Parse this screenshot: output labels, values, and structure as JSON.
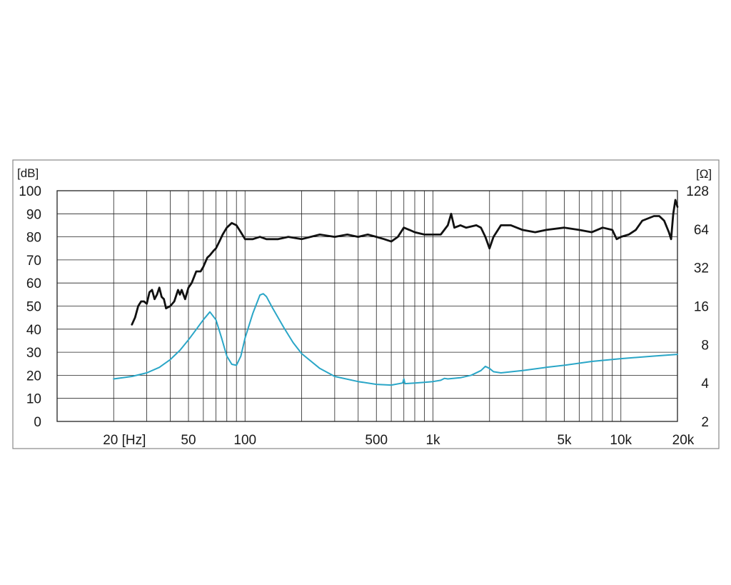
{
  "chart_data": {
    "type": "line",
    "x_scale": "log",
    "x_range_hz": [
      10,
      20000
    ],
    "left_axis": {
      "unit": "[dB]",
      "range": [
        0,
        100
      ],
      "ticks": [
        "0",
        "10",
        "20",
        "30",
        "40",
        "50",
        "60",
        "70",
        "80",
        "90",
        "100"
      ]
    },
    "right_axis": {
      "unit": "[Ω]",
      "scale": "log2",
      "range": [
        2,
        128
      ],
      "ticks": [
        "2",
        "4",
        "8",
        "16",
        "32",
        "64",
        "128"
      ]
    },
    "x_ticks": [
      {
        "label": "20 [Hz]",
        "value": 20
      },
      {
        "label": "50",
        "value": 50
      },
      {
        "label": "100",
        "value": 100
      },
      {
        "label": "500",
        "value": 500
      },
      {
        "label": "1k",
        "value": 1000
      },
      {
        "label": "5k",
        "value": 5000
      },
      {
        "label": "10k",
        "value": 10000
      },
      {
        "label": "20k",
        "value": 20000
      }
    ],
    "grid": true,
    "colors": {
      "spl": "#111111",
      "impedance": "#2aa6c7",
      "grid": "#222222",
      "frame": "#888888"
    },
    "series": [
      {
        "axis": "left",
        "color": "#111111",
        "points": [
          [
            25,
            42
          ],
          [
            26,
            45
          ],
          [
            27,
            50
          ],
          [
            28,
            52
          ],
          [
            29,
            52
          ],
          [
            30,
            51
          ],
          [
            31,
            56
          ],
          [
            32,
            57
          ],
          [
            33,
            53
          ],
          [
            34,
            55
          ],
          [
            35,
            58
          ],
          [
            36,
            54
          ],
          [
            37,
            53
          ],
          [
            38,
            49
          ],
          [
            40,
            50
          ],
          [
            42,
            52
          ],
          [
            44,
            57
          ],
          [
            45,
            55
          ],
          [
            46,
            57
          ],
          [
            48,
            53
          ],
          [
            50,
            58
          ],
          [
            52,
            60
          ],
          [
            55,
            65
          ],
          [
            58,
            65
          ],
          [
            60,
            67
          ],
          [
            63,
            71
          ],
          [
            65,
            72
          ],
          [
            68,
            74
          ],
          [
            70,
            75
          ],
          [
            73,
            78
          ],
          [
            76,
            81
          ],
          [
            80,
            84
          ],
          [
            85,
            86
          ],
          [
            90,
            85
          ],
          [
            95,
            82
          ],
          [
            100,
            79
          ],
          [
            110,
            79
          ],
          [
            120,
            80
          ],
          [
            130,
            79
          ],
          [
            150,
            79
          ],
          [
            170,
            80
          ],
          [
            200,
            79
          ],
          [
            250,
            81
          ],
          [
            300,
            80
          ],
          [
            350,
            81
          ],
          [
            400,
            80
          ],
          [
            450,
            81
          ],
          [
            500,
            80
          ],
          [
            550,
            79
          ],
          [
            600,
            78
          ],
          [
            650,
            80
          ],
          [
            700,
            84
          ],
          [
            750,
            83
          ],
          [
            800,
            82
          ],
          [
            900,
            81
          ],
          [
            1000,
            81
          ],
          [
            1100,
            81
          ],
          [
            1200,
            85
          ],
          [
            1250,
            90
          ],
          [
            1300,
            84
          ],
          [
            1400,
            85
          ],
          [
            1500,
            84
          ],
          [
            1700,
            85
          ],
          [
            1800,
            84
          ],
          [
            1900,
            80
          ],
          [
            2000,
            75
          ],
          [
            2100,
            80
          ],
          [
            2300,
            85
          ],
          [
            2600,
            85
          ],
          [
            3000,
            83
          ],
          [
            3500,
            82
          ],
          [
            4000,
            83
          ],
          [
            5000,
            84
          ],
          [
            6000,
            83
          ],
          [
            7000,
            82
          ],
          [
            8000,
            84
          ],
          [
            9000,
            83
          ],
          [
            9500,
            79
          ],
          [
            10000,
            80
          ],
          [
            11000,
            81
          ],
          [
            12000,
            83
          ],
          [
            13000,
            87
          ],
          [
            15000,
            89
          ],
          [
            16000,
            89
          ],
          [
            17000,
            87
          ],
          [
            18000,
            82
          ],
          [
            18500,
            79
          ],
          [
            19000,
            90
          ],
          [
            19500,
            96
          ],
          [
            20000,
            93
          ]
        ]
      },
      {
        "axis": "right",
        "color": "#2aa6c7",
        "points": [
          [
            20,
            4.3
          ],
          [
            25,
            4.5
          ],
          [
            30,
            4.8
          ],
          [
            35,
            5.3
          ],
          [
            40,
            6.1
          ],
          [
            45,
            7.2
          ],
          [
            50,
            8.7
          ],
          [
            55,
            10.5
          ],
          [
            60,
            12.5
          ],
          [
            65,
            14.4
          ],
          [
            70,
            12.5
          ],
          [
            75,
            9.0
          ],
          [
            80,
            6.5
          ],
          [
            85,
            5.6
          ],
          [
            90,
            5.5
          ],
          [
            95,
            6.5
          ],
          [
            100,
            9.0
          ],
          [
            110,
            14.0
          ],
          [
            120,
            19.5
          ],
          [
            125,
            20.0
          ],
          [
            130,
            19.0
          ],
          [
            140,
            15.5
          ],
          [
            160,
            11.0
          ],
          [
            180,
            8.3
          ],
          [
            200,
            6.8
          ],
          [
            250,
            5.2
          ],
          [
            300,
            4.5
          ],
          [
            400,
            4.1
          ],
          [
            500,
            3.9
          ],
          [
            600,
            3.85
          ],
          [
            690,
            4.0
          ],
          [
            700,
            4.3
          ],
          [
            710,
            3.95
          ],
          [
            800,
            4.0
          ],
          [
            900,
            4.05
          ],
          [
            1000,
            4.1
          ],
          [
            1100,
            4.2
          ],
          [
            1150,
            4.35
          ],
          [
            1200,
            4.3
          ],
          [
            1400,
            4.4
          ],
          [
            1600,
            4.6
          ],
          [
            1800,
            5.0
          ],
          [
            1900,
            5.4
          ],
          [
            2000,
            5.2
          ],
          [
            2100,
            4.9
          ],
          [
            2300,
            4.8
          ],
          [
            3000,
            5.0
          ],
          [
            4000,
            5.3
          ],
          [
            5000,
            5.5
          ],
          [
            7000,
            5.9
          ],
          [
            10000,
            6.2
          ],
          [
            15000,
            6.5
          ],
          [
            20000,
            6.7
          ]
        ]
      }
    ]
  }
}
